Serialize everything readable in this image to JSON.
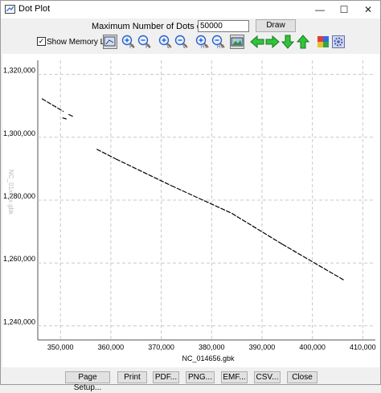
{
  "window": {
    "title": "Dot Plot"
  },
  "controls": {
    "max_dots_label": "Maximum Number of Dots on the Plot:",
    "max_dots_value": "50000",
    "draw_label": "Draw",
    "show_memory_label": "Show Memory Line.",
    "show_memory_checked": true
  },
  "toolbar_icons": [
    "fit-view-icon",
    "zoom-in-horizontal-icon",
    "zoom-out-horizontal-icon",
    "zoom-in-vertical-icon",
    "zoom-out-vertical-icon",
    "zoom-in-both-icon",
    "zoom-out-both-icon",
    "image-icon",
    "arrow-left-icon",
    "arrow-right-icon",
    "arrow-down-icon",
    "arrow-up-icon",
    "color-grid-icon",
    "settings-gear-icon"
  ],
  "chart_data": {
    "type": "scatter",
    "xlabel": "NC_014656.gbk",
    "ylabel": "NC_01xxxx.gbk",
    "x_ticks": [
      "350,000",
      "360,000",
      "370,000",
      "380,000",
      "390,000",
      "400,000",
      "410,000"
    ],
    "y_ticks": [
      "1,320,000",
      "1,300,000",
      "1,280,000",
      "1,260,000",
      "1,240,000"
    ],
    "xlim": [
      345500,
      412500
    ],
    "ylim": [
      1235500,
      1324500
    ],
    "grid": true,
    "segments": [
      {
        "x": [
          346300,
          350600
        ],
        "y": [
          1312300,
          1308200
        ]
      },
      {
        "x": [
          350400,
          351200
        ],
        "y": [
          1306200,
          1305800
        ]
      },
      {
        "x": [
          351600,
          352500
        ],
        "y": [
          1307300,
          1306600
        ]
      },
      {
        "x": [
          357200,
          361000
        ],
        "y": [
          1296200,
          1293100
        ]
      },
      {
        "x": [
          361000,
          372000
        ],
        "y": [
          1293100,
          1284600
        ]
      },
      {
        "x": [
          372000,
          384000
        ],
        "y": [
          1284600,
          1275800
        ]
      },
      {
        "x": [
          384000,
          394000
        ],
        "y": [
          1275800,
          1266000
        ]
      },
      {
        "x": [
          394000,
          406200
        ],
        "y": [
          1266000,
          1254600
        ]
      }
    ],
    "series_color": "#000000"
  },
  "bottom_buttons": [
    "Page Setup...",
    "Print",
    "PDF...",
    "PNG...",
    "EMF...",
    "CSV...",
    "Close"
  ]
}
